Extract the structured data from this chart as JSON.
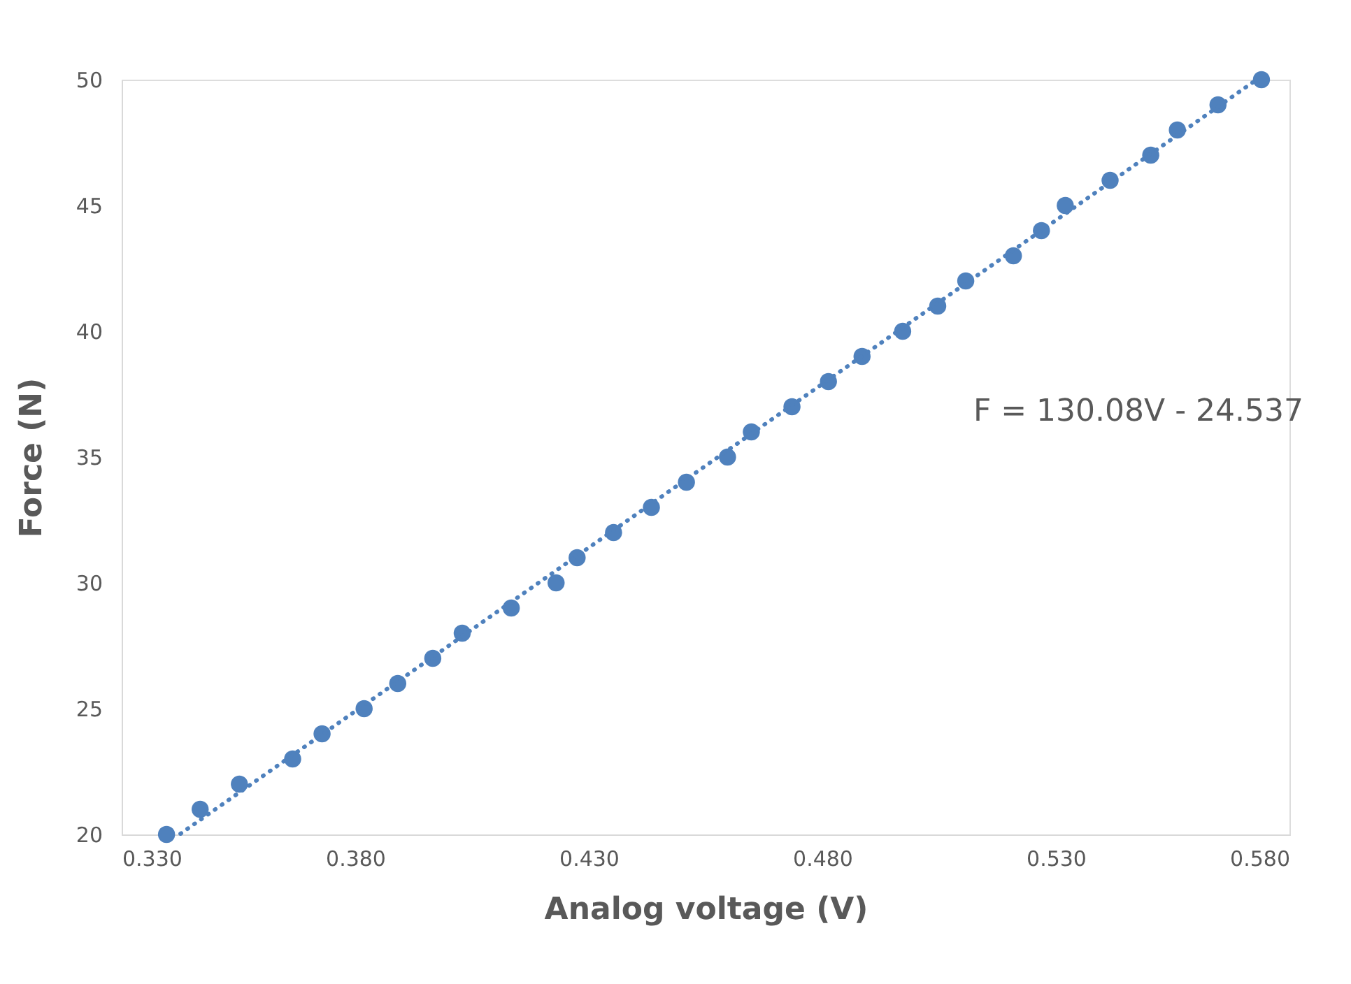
{
  "chart_data": {
    "type": "scatter",
    "xlabel": "Analog voltage (V)",
    "ylabel": "Force (N)",
    "xlim": [
      0.33,
      0.58
    ],
    "xticks": [
      {
        "value": 0.33,
        "label": "0.330"
      },
      {
        "value": 0.38,
        "label": "0.380"
      },
      {
        "value": 0.43,
        "label": "0.430"
      },
      {
        "value": 0.48,
        "label": "0.480"
      },
      {
        "value": 0.53,
        "label": "0.530"
      },
      {
        "value": 0.58,
        "label": "0.580"
      }
    ],
    "ylim": [
      20,
      50
    ],
    "yticks": [
      20,
      25,
      30,
      35,
      40,
      45,
      50
    ],
    "grid": false,
    "marker": "circle",
    "annotations": [
      "F = 130.08V - 24.537"
    ],
    "series": [
      {
        "color": "#4f81bd",
        "x": [
          0.3396,
          0.3468,
          0.3552,
          0.3666,
          0.3729,
          0.3819,
          0.3891,
          0.3966,
          0.4029,
          0.4134,
          0.423,
          0.4275,
          0.4353,
          0.4434,
          0.4509,
          0.4597,
          0.4648,
          0.4735,
          0.4813,
          0.4885,
          0.4972,
          0.5047,
          0.5107,
          0.5209,
          0.5269,
          0.532,
          0.5416,
          0.5503,
          0.556,
          0.5647,
          0.574
        ],
        "values": [
          20,
          21,
          22,
          23,
          24,
          25,
          26,
          27,
          28,
          29,
          30,
          31,
          32,
          33,
          34,
          35,
          36,
          37,
          38,
          39,
          40,
          41,
          42,
          43,
          44,
          45,
          46,
          47,
          48,
          49,
          50
        ]
      },
      {
        "type": "line",
        "color": "#4f81bd",
        "line_style": "dotted",
        "marker": "none",
        "x": [
          0.3426,
          0.5729
        ],
        "values": [
          20.03,
          49.99
        ]
      }
    ]
  }
}
